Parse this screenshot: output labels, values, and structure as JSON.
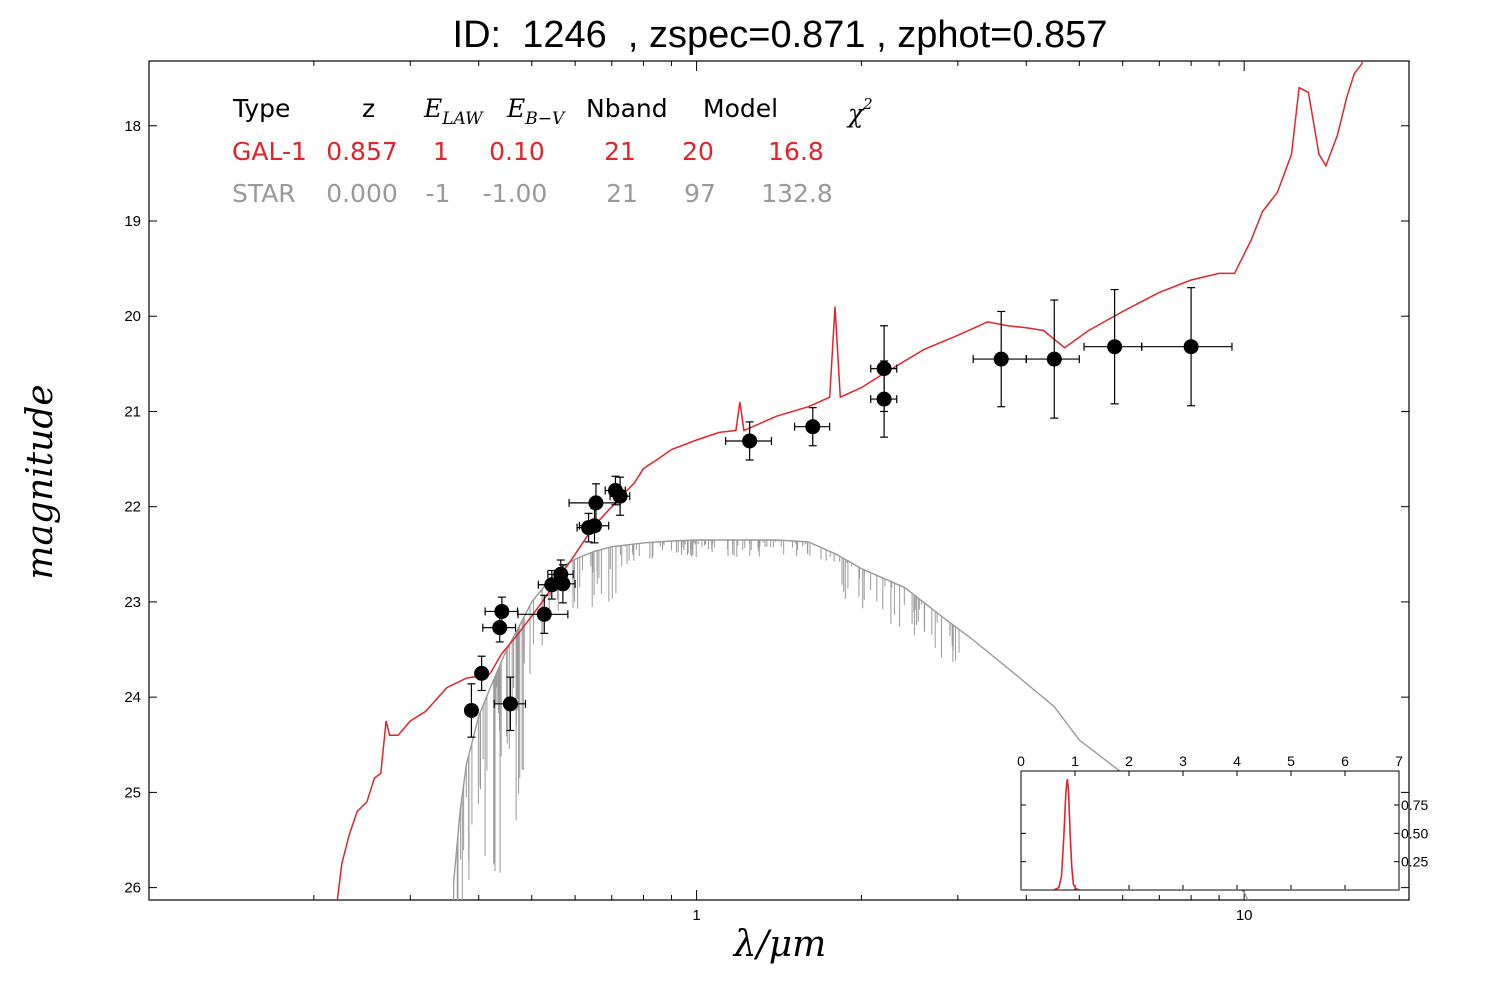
{
  "title": "ID:  1246  , zspec=0.871 , zphot=0.857",
  "colors": {
    "galaxy": "#e0242c",
    "star": "#999999",
    "points": "#000000"
  },
  "table": {
    "headers": [
      "Type",
      "z",
      "E_LAW",
      "E_B-V",
      "Nband",
      "Model",
      "χ²"
    ],
    "rows": [
      {
        "name": "GAL-1",
        "color": "#e0242c",
        "cells": [
          "GAL-1",
          "0.857",
          "1",
          "0.10",
          "21",
          "20",
          "16.8"
        ]
      },
      {
        "name": "STAR",
        "color": "#999999",
        "cells": [
          "STAR",
          "0.000",
          "-1",
          "-1.00",
          "21",
          "97",
          "132.8"
        ]
      }
    ]
  },
  "chart_data": [
    {
      "type": "scatter",
      "xlabel": "λ/μm",
      "ylabel": "magnitude",
      "xscale": "log",
      "xlim": [
        0.1,
        20
      ],
      "ylim": [
        26.13,
        17.32
      ],
      "x_tick_labels": [
        "1",
        "10"
      ],
      "y_ticks": [
        18,
        19,
        20,
        21,
        22,
        23,
        24,
        25,
        26
      ],
      "y_tick_labels": [
        "18",
        "19",
        "20",
        "21",
        "22",
        "23",
        "24",
        "25",
        "26"
      ],
      "observations": [
        {
          "x": 0.388,
          "y": 24.14,
          "xerr": 0.008,
          "yerr": 0.28
        },
        {
          "x": 0.405,
          "y": 23.75,
          "xerr": 0.01,
          "yerr": 0.18
        },
        {
          "x": 0.457,
          "y": 24.07,
          "xerr": 0.03,
          "yerr": 0.28
        },
        {
          "x": 0.437,
          "y": 23.27,
          "xerr": 0.03,
          "yerr": 0.15
        },
        {
          "x": 0.441,
          "y": 23.1,
          "xerr": 0.03,
          "yerr": 0.15
        },
        {
          "x": 0.527,
          "y": 23.13,
          "xerr": 0.055,
          "yerr": 0.2
        },
        {
          "x": 0.544,
          "y": 22.82,
          "xerr": 0.03,
          "yerr": 0.15
        },
        {
          "x": 0.565,
          "y": 22.71,
          "xerr": 0.03,
          "yerr": 0.15
        },
        {
          "x": 0.57,
          "y": 22.81,
          "xerr": 0.03,
          "yerr": 0.2
        },
        {
          "x": 0.635,
          "y": 22.22,
          "xerr": 0.03,
          "yerr": 0.15
        },
        {
          "x": 0.651,
          "y": 22.2,
          "xerr": 0.04,
          "yerr": 0.18
        },
        {
          "x": 0.711,
          "y": 21.83,
          "xerr": 0.03,
          "yerr": 0.15
        },
        {
          "x": 0.725,
          "y": 21.89,
          "xerr": 0.03,
          "yerr": 0.2
        },
        {
          "x": 0.655,
          "y": 21.96,
          "xerr": 0.07,
          "yerr": 0.2
        },
        {
          "x": 1.25,
          "y": 21.31,
          "xerr": 0.12,
          "yerr": 0.2
        },
        {
          "x": 1.63,
          "y": 21.16,
          "xerr": 0.12,
          "yerr": 0.2
        },
        {
          "x": 2.2,
          "y": 20.55,
          "xerr": 0.12,
          "yerr": 0.45
        },
        {
          "x": 2.2,
          "y": 20.87,
          "xerr": 0.12,
          "yerr": 0.4
        },
        {
          "x": 3.6,
          "y": 20.45,
          "xerr": 0.4,
          "yerr": 0.5
        },
        {
          "x": 4.5,
          "y": 20.45,
          "xerr": 0.5,
          "yerr": 0.62
        },
        {
          "x": 5.8,
          "y": 20.32,
          "xerr": 0.7,
          "yerr": 0.6
        },
        {
          "x": 8.0,
          "y": 20.32,
          "xerr": 1.5,
          "yerr": 0.62
        }
      ],
      "galaxy_model": [
        [
          0.22,
          26.2
        ],
        [
          0.225,
          25.75
        ],
        [
          0.232,
          25.45
        ],
        [
          0.24,
          25.2
        ],
        [
          0.25,
          25.1
        ],
        [
          0.258,
          24.85
        ],
        [
          0.265,
          24.8
        ],
        [
          0.271,
          24.25
        ],
        [
          0.275,
          24.4
        ],
        [
          0.285,
          24.4
        ],
        [
          0.3,
          24.25
        ],
        [
          0.32,
          24.15
        ],
        [
          0.35,
          23.9
        ],
        [
          0.38,
          23.8
        ],
        [
          0.4,
          23.78
        ],
        [
          0.405,
          23.82
        ],
        [
          0.42,
          23.75
        ],
        [
          0.44,
          23.55
        ],
        [
          0.47,
          23.35
        ],
        [
          0.5,
          23.15
        ],
        [
          0.53,
          22.95
        ],
        [
          0.56,
          22.75
        ],
        [
          0.6,
          22.5
        ],
        [
          0.65,
          22.2
        ],
        [
          0.7,
          22.0
        ],
        [
          0.74,
          21.85
        ],
        [
          0.77,
          21.75
        ],
        [
          0.8,
          21.6
        ],
        [
          0.85,
          21.5
        ],
        [
          0.9,
          21.4
        ],
        [
          1.0,
          21.3
        ],
        [
          1.1,
          21.22
        ],
        [
          1.18,
          21.2
        ],
        [
          1.2,
          20.9
        ],
        [
          1.22,
          21.2
        ],
        [
          1.4,
          21.05
        ],
        [
          1.6,
          20.95
        ],
        [
          1.75,
          20.85
        ],
        [
          1.79,
          19.9
        ],
        [
          1.83,
          20.85
        ],
        [
          2.0,
          20.75
        ],
        [
          2.2,
          20.6
        ],
        [
          2.6,
          20.35
        ],
        [
          3.0,
          20.2
        ],
        [
          3.4,
          20.06
        ],
        [
          3.7,
          20.1
        ],
        [
          4.0,
          20.12
        ],
        [
          4.3,
          20.15
        ],
        [
          4.7,
          20.33
        ],
        [
          5.2,
          20.15
        ],
        [
          6.0,
          19.95
        ],
        [
          7.0,
          19.75
        ],
        [
          8.0,
          19.62
        ],
        [
          9.0,
          19.55
        ],
        [
          9.6,
          19.55
        ],
        [
          10.3,
          19.2
        ],
        [
          10.8,
          18.9
        ],
        [
          11.5,
          18.7
        ],
        [
          12.2,
          18.3
        ],
        [
          12.6,
          17.6
        ],
        [
          13.1,
          17.65
        ],
        [
          13.7,
          18.3
        ],
        [
          14.1,
          18.42
        ],
        [
          14.8,
          18.1
        ],
        [
          15.4,
          17.7
        ],
        [
          15.9,
          17.45
        ],
        [
          16.4,
          17.35
        ],
        [
          16.9,
          17.1
        ]
      ],
      "star_model": [
        [
          0.36,
          25.95
        ],
        [
          0.37,
          25.2
        ],
        [
          0.38,
          24.7
        ],
        [
          0.39,
          24.45
        ],
        [
          0.4,
          24.2
        ],
        [
          0.42,
          23.9
        ],
        [
          0.45,
          23.5
        ],
        [
          0.48,
          23.2
        ],
        [
          0.5,
          23.0
        ],
        [
          0.53,
          22.82
        ],
        [
          0.56,
          22.65
        ],
        [
          0.6,
          22.55
        ],
        [
          0.65,
          22.47
        ],
        [
          0.7,
          22.42
        ],
        [
          0.8,
          22.38
        ],
        [
          0.9,
          22.36
        ],
        [
          1.0,
          22.35
        ],
        [
          1.2,
          22.35
        ],
        [
          1.4,
          22.35
        ],
        [
          1.6,
          22.37
        ],
        [
          1.8,
          22.5
        ],
        [
          2.0,
          22.65
        ],
        [
          2.4,
          22.85
        ],
        [
          2.8,
          23.15
        ],
        [
          3.2,
          23.4
        ],
        [
          3.8,
          23.75
        ],
        [
          4.5,
          24.1
        ],
        [
          5.0,
          24.45
        ],
        [
          6.0,
          24.8
        ],
        [
          7.0,
          25.15
        ],
        [
          8.0,
          25.5
        ],
        [
          9.0,
          25.8
        ],
        [
          10.0,
          26.05
        ],
        [
          10.3,
          26.2
        ]
      ]
    },
    {
      "type": "line",
      "series": [
        {
          "name": "GAL-1",
          "values": []
        }
      ],
      "xlim": [
        0,
        7
      ],
      "ylim": [
        0,
        1.05
      ],
      "x_ticks": [
        0,
        1,
        2,
        3,
        4,
        5,
        6,
        7
      ],
      "x_tick_labels": [
        "0",
        "1",
        "2",
        "3",
        "4",
        "5",
        "6",
        "7"
      ],
      "y_ticks": [
        0.25,
        0.5,
        0.75
      ],
      "y_tick_labels": [
        "0.25",
        "0.50",
        "0.75"
      ],
      "pdf": [
        [
          0.0,
          0.0
        ],
        [
          0.6,
          0.0
        ],
        [
          0.7,
          0.02
        ],
        [
          0.75,
          0.12
        ],
        [
          0.79,
          0.45
        ],
        [
          0.83,
          0.85
        ],
        [
          0.857,
          0.98
        ],
        [
          0.88,
          0.88
        ],
        [
          0.91,
          0.5
        ],
        [
          0.94,
          0.2
        ],
        [
          0.97,
          0.05
        ],
        [
          1.02,
          0.01
        ],
        [
          1.1,
          0.0
        ],
        [
          7.0,
          0.0
        ]
      ]
    }
  ]
}
